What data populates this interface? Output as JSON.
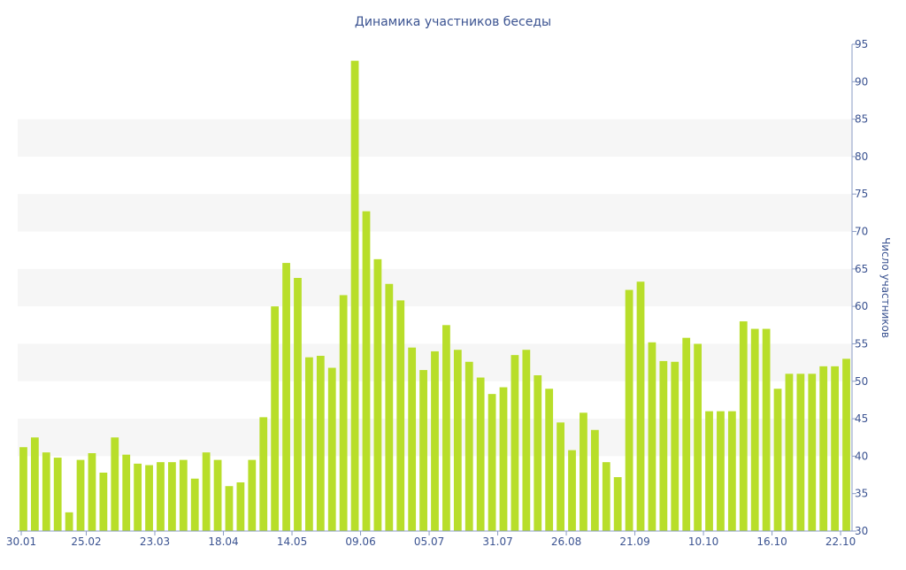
{
  "chart_data": {
    "type": "bar",
    "title": "Динамика участников беседы",
    "ylabel": "Число участников",
    "xlabel": "",
    "ylim": [
      30,
      95
    ],
    "yticks": [
      30,
      35,
      40,
      45,
      50,
      55,
      60,
      65,
      70,
      75,
      80,
      85,
      90,
      95
    ],
    "y_axis_side": "right",
    "grid": "alternating horizontal bands",
    "x_tick_labels": [
      {
        "label": "30.01",
        "index": 0
      },
      {
        "label": "25.02",
        "index": 6
      },
      {
        "label": "23.03",
        "index": 12
      },
      {
        "label": "18.04",
        "index": 18
      },
      {
        "label": "14.05",
        "index": 24
      },
      {
        "label": "09.06",
        "index": 30
      },
      {
        "label": "05.07",
        "index": 36
      },
      {
        "label": "31.07",
        "index": 42
      },
      {
        "label": "26.08",
        "index": 48
      },
      {
        "label": "21.09",
        "index": 54
      },
      {
        "label": "10.10",
        "index": 60
      },
      {
        "label": "16.10",
        "index": 66
      },
      {
        "label": "22.10",
        "index": 72
      }
    ],
    "values": [
      41.2,
      42.5,
      40.5,
      39.8,
      32.5,
      39.5,
      40.4,
      37.8,
      42.5,
      40.2,
      39.0,
      38.8,
      39.2,
      39.2,
      39.5,
      37.0,
      40.5,
      39.5,
      36.0,
      36.5,
      39.5,
      45.2,
      60.0,
      65.8,
      63.8,
      53.2,
      53.4,
      51.8,
      61.5,
      92.8,
      72.7,
      66.3,
      63.0,
      60.8,
      54.5,
      51.5,
      54.0,
      57.5,
      54.2,
      52.6,
      50.5,
      48.3,
      49.2,
      53.5,
      54.2,
      50.8,
      49.0,
      44.5,
      40.8,
      45.8,
      43.5,
      39.2,
      37.2,
      62.2,
      63.3,
      55.2,
      52.7,
      52.6,
      55.8,
      55.0,
      46.0,
      46.0,
      46.0,
      58.0,
      57.0,
      57.0,
      49.0,
      51.0,
      51.0,
      51.0,
      52.0,
      52.0,
      53.0
    ],
    "colors": {
      "bar": "#b8de2a",
      "band": "#f6f6f6",
      "text": "#3b5391",
      "axis": "#8a9bc4"
    }
  }
}
